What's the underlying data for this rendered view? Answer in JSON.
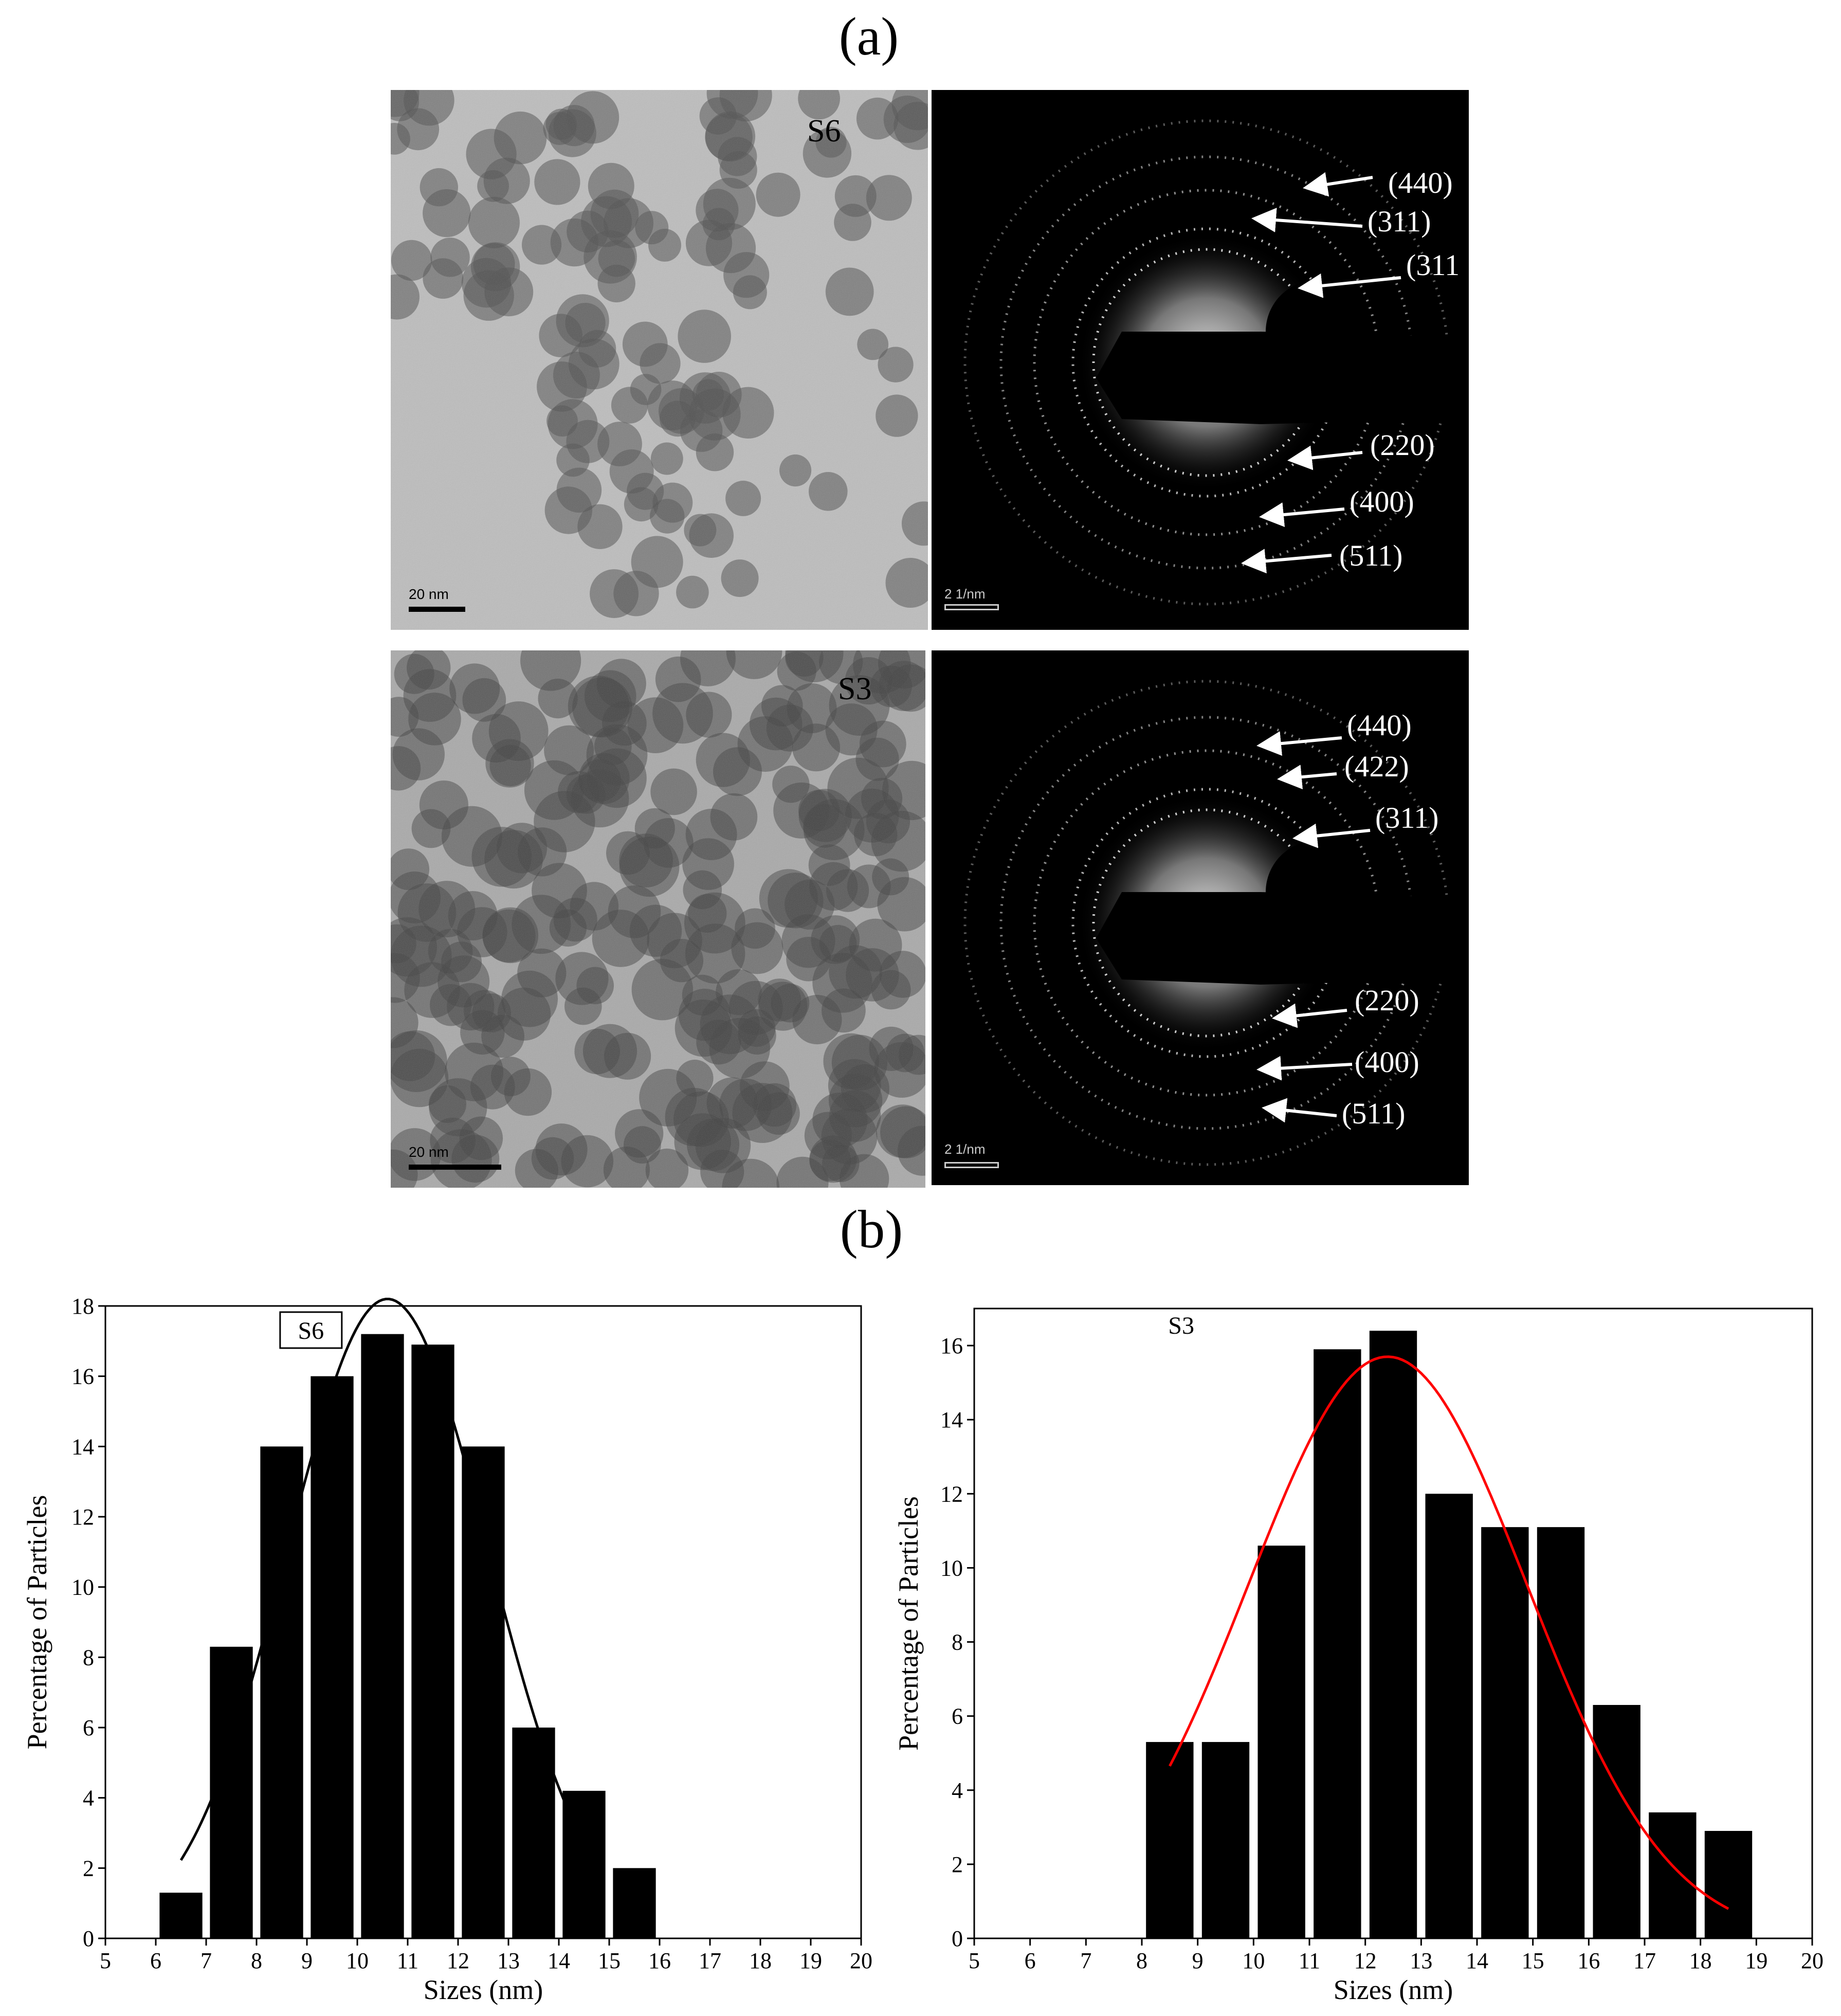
{
  "panel_a": {
    "label": "(a)",
    "tem": [
      {
        "sample": "S6",
        "scale_bar": "20 nm"
      },
      {
        "sample": "S3",
        "scale_bar": "20 nm"
      }
    ],
    "saed": [
      {
        "scale_bar": "2 1/nm",
        "rings": [
          "(440)",
          "(311)",
          "(311",
          "(220)",
          "(400)",
          "(511)"
        ]
      },
      {
        "scale_bar": "2 1/nm",
        "rings": [
          "(440)",
          "(422)",
          "(311)",
          "(220)",
          "(400)",
          "(511)"
        ]
      }
    ]
  },
  "panel_b": {
    "label": "(b)"
  },
  "chart_data": [
    {
      "type": "bar",
      "legend": "S6",
      "legend_boxed": true,
      "xlabel": "Sizes (nm)",
      "ylabel": "Percentage of Particles",
      "xlim": [
        5,
        20
      ],
      "ylim": [
        0,
        18
      ],
      "xticks": [
        5,
        6,
        7,
        8,
        9,
        10,
        11,
        12,
        13,
        14,
        15,
        16,
        17,
        18,
        19,
        20
      ],
      "yticks": [
        0,
        2,
        4,
        6,
        8,
        10,
        12,
        14,
        16,
        18
      ],
      "bar_color": "#000000",
      "bars": [
        {
          "x": 6.5,
          "value": 1.3
        },
        {
          "x": 7.5,
          "value": 8.3
        },
        {
          "x": 8.5,
          "value": 14.0
        },
        {
          "x": 9.5,
          "value": 16.0
        },
        {
          "x": 10.5,
          "value": 17.2
        },
        {
          "x": 11.5,
          "value": 16.9
        },
        {
          "x": 12.5,
          "value": 14.0
        },
        {
          "x": 13.5,
          "value": 6.0
        },
        {
          "x": 14.5,
          "value": 4.2
        },
        {
          "x": 15.5,
          "value": 2.0
        }
      ],
      "fit": {
        "color": "#000000",
        "x_range": [
          6.5,
          14.5
        ],
        "peak": 18.2,
        "center": 10.6,
        "sigma": 2.0
      }
    },
    {
      "type": "bar",
      "legend": "S3",
      "legend_boxed": false,
      "xlabel": "Sizes (nm)",
      "ylabel": "Percentage of Particles",
      "xlim": [
        5,
        20
      ],
      "ylim": [
        0,
        17
      ],
      "xticks": [
        5,
        6,
        7,
        8,
        9,
        10,
        11,
        12,
        13,
        14,
        15,
        16,
        17,
        18,
        19,
        20
      ],
      "yticks": [
        0,
        2,
        4,
        6,
        8,
        10,
        12,
        14,
        16
      ],
      "bar_color": "#000000",
      "bars": [
        {
          "x": 8.5,
          "value": 5.3
        },
        {
          "x": 9.5,
          "value": 5.3
        },
        {
          "x": 10.5,
          "value": 10.6
        },
        {
          "x": 11.5,
          "value": 15.9
        },
        {
          "x": 12.5,
          "value": 16.4
        },
        {
          "x": 13.5,
          "value": 12.0
        },
        {
          "x": 14.5,
          "value": 11.1
        },
        {
          "x": 15.5,
          "value": 11.1
        },
        {
          "x": 16.5,
          "value": 6.3
        },
        {
          "x": 17.5,
          "value": 3.4
        },
        {
          "x": 18.5,
          "value": 2.9
        }
      ],
      "fit": {
        "color": "#ff0000",
        "x_range": [
          8.5,
          18.5
        ],
        "peak": 15.7,
        "center": 12.4,
        "sigma": 2.5
      }
    }
  ]
}
